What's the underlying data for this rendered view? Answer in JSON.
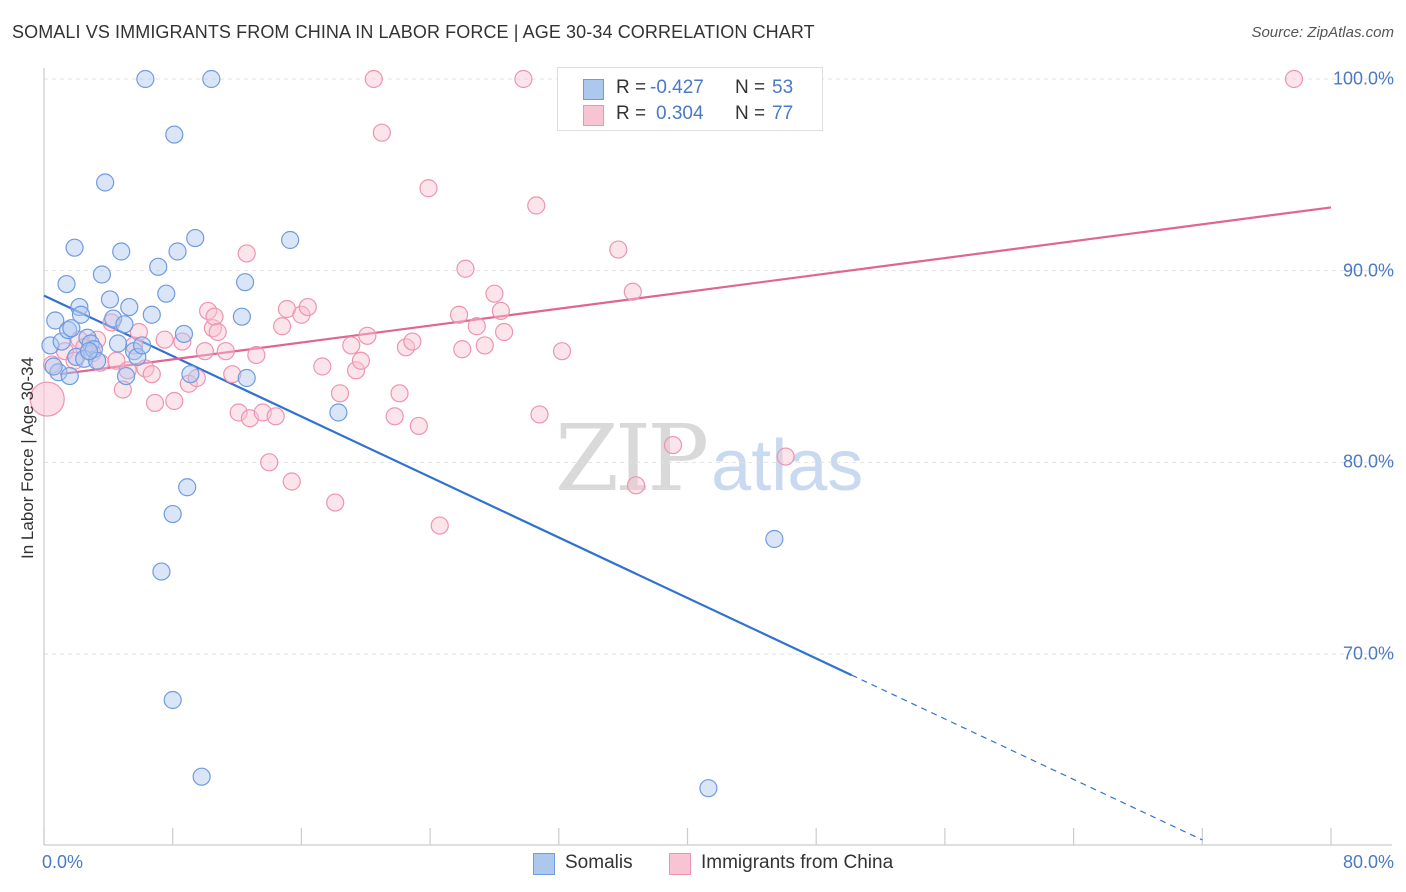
{
  "header": {
    "title": "SOMALI VS IMMIGRANTS FROM CHINA IN LABOR FORCE | AGE 30-34 CORRELATION CHART",
    "source": "Source: ZipAtlas.com"
  },
  "watermark": {
    "zip": "ZIP",
    "atlas": "atlas"
  },
  "legend": {
    "r_label": "R =",
    "n_label": "N =",
    "rows": [
      {
        "r": "-0.427",
        "n": "53",
        "fill": "#adc8ef",
        "stroke": "#6f9be0"
      },
      {
        "r": "0.304",
        "n": "77",
        "fill": "#f8c3d3",
        "stroke": "#ee93b1"
      }
    ]
  },
  "chart_data": {
    "type": "scatter",
    "title": "SOMALI VS IMMIGRANTS FROM CHINA IN LABOR FORCE | AGE 30-34 CORRELATION CHART",
    "xlabel": "",
    "ylabel": "In Labor Force | Age 30-34",
    "xlim": [
      0,
      80
    ],
    "ylim": [
      60,
      102
    ],
    "x_tick_labels": [
      "0.0%",
      "80.0%"
    ],
    "y_ticks": [
      {
        "value": 100,
        "label": "100.0%"
      },
      {
        "value": 90,
        "label": "90.0%"
      },
      {
        "value": 80,
        "label": "80.0%"
      },
      {
        "value": 70,
        "label": "70.0%"
      }
    ],
    "grid": true,
    "legend_position": "bottom",
    "series": [
      {
        "name": "Somalis",
        "color": "#6f9be0",
        "fill": "#adc8ef",
        "line_color": "#2f72d1",
        "trend": {
          "x0": 0,
          "y0": 88.7,
          "x1": 50.2,
          "y1": 68.9,
          "dash_x1": 72.0,
          "dash_y1": 60.3
        },
        "points": [
          [
            0.4,
            86.1
          ],
          [
            0.7,
            87.4
          ],
          [
            0.9,
            84.7
          ],
          [
            1.1,
            86.3
          ],
          [
            1.4,
            89.3
          ],
          [
            1.5,
            86.9
          ],
          [
            1.7,
            87.0
          ],
          [
            1.6,
            84.5
          ],
          [
            1.9,
            91.2
          ],
          [
            2.0,
            85.5
          ],
          [
            2.2,
            88.1
          ],
          [
            2.3,
            87.7
          ],
          [
            2.5,
            85.4
          ],
          [
            2.7,
            86.5
          ],
          [
            2.9,
            86.2
          ],
          [
            3.1,
            85.9
          ],
          [
            3.3,
            85.3
          ],
          [
            3.6,
            89.8
          ],
          [
            3.8,
            94.6
          ],
          [
            4.1,
            88.5
          ],
          [
            4.3,
            87.5
          ],
          [
            4.6,
            86.2
          ],
          [
            4.8,
            91.0
          ],
          [
            5.1,
            84.5
          ],
          [
            5.3,
            88.1
          ],
          [
            5.6,
            85.8
          ],
          [
            5.8,
            85.5
          ],
          [
            6.1,
            86.1
          ],
          [
            6.3,
            100.0
          ],
          [
            6.7,
            87.7
          ],
          [
            7.1,
            90.2
          ],
          [
            7.3,
            74.3
          ],
          [
            7.6,
            88.8
          ],
          [
            8.0,
            77.3
          ],
          [
            8.1,
            97.1
          ],
          [
            8.3,
            91.0
          ],
          [
            8.7,
            86.7
          ],
          [
            8.9,
            78.7
          ],
          [
            9.1,
            84.6
          ],
          [
            9.4,
            91.7
          ],
          [
            9.8,
            63.6
          ],
          [
            10.4,
            100.0
          ],
          [
            12.3,
            87.6
          ],
          [
            12.5,
            89.4
          ],
          [
            12.6,
            84.4
          ],
          [
            15.3,
            91.6
          ],
          [
            18.3,
            82.6
          ],
          [
            41.3,
            63.0
          ],
          [
            45.4,
            76.0
          ],
          [
            0.6,
            85.0
          ],
          [
            2.8,
            85.8
          ],
          [
            5.0,
            87.2
          ],
          [
            8.0,
            67.6
          ]
        ]
      },
      {
        "name": "Immigrants from China",
        "color": "#ee93b1",
        "fill": "#f8c3d3",
        "line_color": "#e06592",
        "trend": {
          "x0": 1.0,
          "y0": 84.6,
          "x1": 80.0,
          "y1": 93.3
        },
        "points": [
          [
            0.2,
            83.3
          ],
          [
            0.5,
            85.1
          ],
          [
            1.3,
            85.8
          ],
          [
            1.9,
            85.3
          ],
          [
            2.2,
            86.4
          ],
          [
            2.5,
            86.0
          ],
          [
            3.0,
            85.7
          ],
          [
            3.3,
            86.4
          ],
          [
            3.5,
            85.2
          ],
          [
            4.2,
            87.3
          ],
          [
            4.5,
            85.3
          ],
          [
            4.9,
            83.8
          ],
          [
            5.2,
            84.8
          ],
          [
            5.6,
            86.1
          ],
          [
            5.9,
            86.8
          ],
          [
            6.3,
            84.9
          ],
          [
            6.7,
            84.6
          ],
          [
            6.9,
            83.1
          ],
          [
            7.5,
            86.4
          ],
          [
            8.1,
            83.2
          ],
          [
            8.6,
            86.3
          ],
          [
            9.0,
            84.1
          ],
          [
            9.5,
            84.4
          ],
          [
            10.0,
            85.8
          ],
          [
            10.2,
            87.9
          ],
          [
            10.5,
            87.0
          ],
          [
            10.6,
            87.6
          ],
          [
            10.8,
            86.8
          ],
          [
            11.3,
            85.8
          ],
          [
            11.7,
            84.6
          ],
          [
            12.1,
            82.6
          ],
          [
            12.6,
            90.9
          ],
          [
            12.8,
            82.3
          ],
          [
            13.2,
            85.6
          ],
          [
            13.6,
            82.6
          ],
          [
            14.0,
            80.0
          ],
          [
            14.4,
            82.4
          ],
          [
            14.8,
            87.1
          ],
          [
            15.1,
            88.0
          ],
          [
            15.4,
            79.0
          ],
          [
            16.0,
            87.7
          ],
          [
            16.4,
            88.1
          ],
          [
            17.3,
            85.0
          ],
          [
            18.1,
            77.9
          ],
          [
            18.4,
            83.6
          ],
          [
            19.1,
            86.1
          ],
          [
            19.4,
            84.8
          ],
          [
            19.7,
            85.3
          ],
          [
            20.1,
            86.6
          ],
          [
            20.5,
            100.0
          ],
          [
            21.0,
            97.2
          ],
          [
            21.8,
            82.4
          ],
          [
            22.1,
            83.6
          ],
          [
            22.5,
            86.0
          ],
          [
            22.9,
            86.3
          ],
          [
            23.3,
            81.9
          ],
          [
            23.9,
            94.3
          ],
          [
            24.6,
            76.7
          ],
          [
            25.8,
            87.7
          ],
          [
            26.0,
            85.9
          ],
          [
            26.2,
            90.1
          ],
          [
            26.9,
            87.1
          ],
          [
            27.4,
            86.1
          ],
          [
            28.0,
            88.8
          ],
          [
            28.4,
            87.9
          ],
          [
            28.6,
            86.8
          ],
          [
            29.8,
            100.0
          ],
          [
            30.6,
            93.4
          ],
          [
            30.8,
            82.5
          ],
          [
            32.2,
            85.8
          ],
          [
            32.5,
            100.0
          ],
          [
            35.7,
            91.1
          ],
          [
            36.6,
            88.9
          ],
          [
            36.8,
            78.8
          ],
          [
            39.1,
            80.9
          ],
          [
            46.1,
            80.3
          ],
          [
            77.7,
            100.0
          ]
        ]
      }
    ]
  }
}
